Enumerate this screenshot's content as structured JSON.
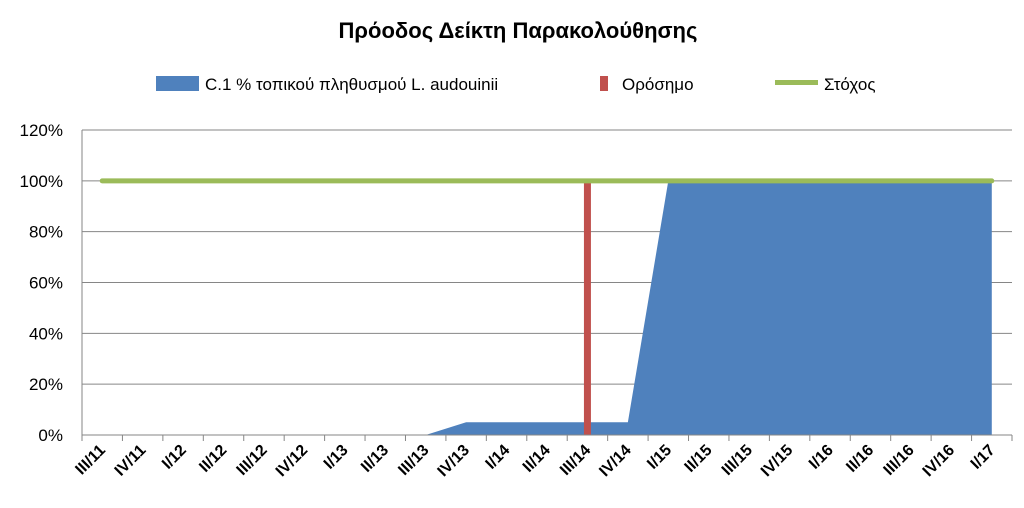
{
  "chart_data": {
    "type": "area",
    "title": "Πρόοδος Δείκτη Παρακολούθησης",
    "categories": [
      "III/11",
      "IV/11",
      "I/12",
      "II/12",
      "III/12",
      "IV/12",
      "I/13",
      "II/13",
      "III/13",
      "IV/13",
      "I/14",
      "II/14",
      "III/14",
      "IV/14",
      "I/15",
      "II/15",
      "III/15",
      "IV/15",
      "I/16",
      "II/16",
      "III/16",
      "IV/16",
      "I/17"
    ],
    "yticks": [
      "0%",
      "20%",
      "40%",
      "60%",
      "80%",
      "100%",
      "120%"
    ],
    "ylim": [
      0,
      120
    ],
    "grid": true,
    "legend_position": "top",
    "series": [
      {
        "name": "C.1 % τοπικού πληθυσμού L. audouinii",
        "kind": "area",
        "color": "#4F81BD",
        "values": [
          0,
          0,
          0,
          0,
          0,
          0,
          0,
          0,
          0,
          5,
          5,
          5,
          5,
          5,
          100,
          100,
          100,
          100,
          100,
          100,
          100,
          100,
          100
        ]
      },
      {
        "name": "Ορόσημο",
        "kind": "vertical-bar",
        "color": "#C0504D",
        "category": "III/14",
        "value": 100
      },
      {
        "name": "Στόχος",
        "kind": "line",
        "color": "#9BBB59",
        "values": [
          100,
          100,
          100,
          100,
          100,
          100,
          100,
          100,
          100,
          100,
          100,
          100,
          100,
          100,
          100,
          100,
          100,
          100,
          100,
          100,
          100,
          100,
          100
        ]
      }
    ]
  }
}
